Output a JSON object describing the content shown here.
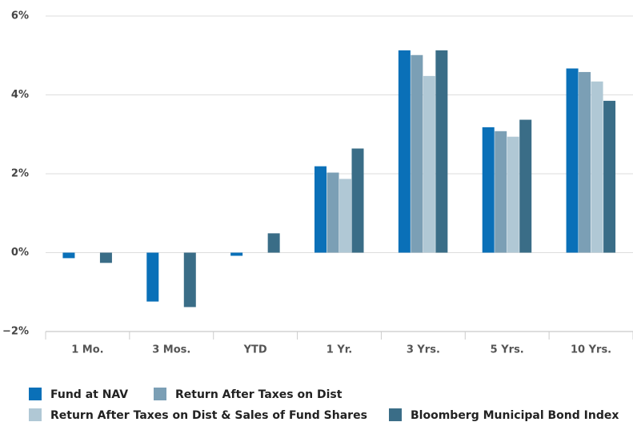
{
  "chart_data": {
    "type": "bar",
    "categories": [
      "1 Mo.",
      "3 Mos.",
      "YTD",
      "1 Yr.",
      "3 Yrs.",
      "5 Yrs.",
      "10 Yrs."
    ],
    "series": [
      {
        "name": "Fund at NAV",
        "color": "#0a70b8",
        "values": [
          -0.14,
          -1.24,
          -0.08,
          2.19,
          5.13,
          3.18,
          4.67
        ]
      },
      {
        "name": "Return After Taxes on Dist",
        "color": "#7b9fb5",
        "values": [
          null,
          null,
          null,
          2.03,
          5.01,
          3.08,
          4.58
        ]
      },
      {
        "name": "Return After Taxes on Dist & Sales of Fund Shares",
        "color": "#b0c8d5",
        "values": [
          null,
          null,
          null,
          1.87,
          4.48,
          2.94,
          4.34
        ]
      },
      {
        "name": "Bloomberg Municipal Bond Index",
        "color": "#3a6d87",
        "values": [
          -0.26,
          -1.38,
          0.49,
          2.64,
          5.13,
          3.37,
          3.85
        ]
      }
    ],
    "ylim": [
      -2,
      6
    ],
    "yticks": [
      {
        "value": -2,
        "label": "−2%"
      },
      {
        "value": 0,
        "label": "0%"
      },
      {
        "value": 2,
        "label": "2%"
      },
      {
        "value": 4,
        "label": "4%"
      },
      {
        "value": 6,
        "label": "6%"
      }
    ],
    "grid": true,
    "legend": "bottom"
  }
}
